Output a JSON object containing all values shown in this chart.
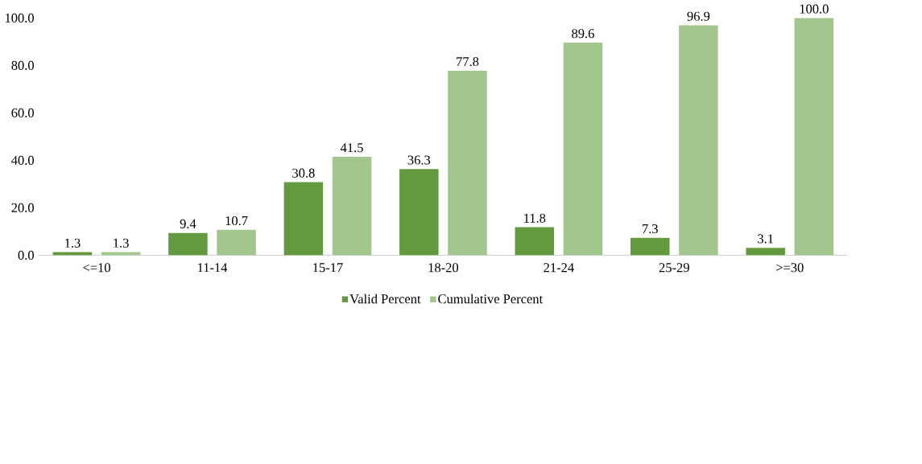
{
  "chart_data": {
    "type": "bar",
    "categories": [
      "<=10",
      "11-14",
      "15-17",
      "18-20",
      "21-24",
      "25-29",
      ">=30"
    ],
    "series": [
      {
        "name": "Valid Percent",
        "color": "#639a3f",
        "values": [
          1.3,
          9.4,
          30.8,
          36.3,
          11.8,
          7.3,
          3.1
        ],
        "value_labels": [
          "1.3",
          "9.4",
          "30.8",
          "36.3",
          "11.8",
          "7.3",
          "3.1"
        ]
      },
      {
        "name": "Cumulative Percent",
        "color": "#a3c68f",
        "values": [
          1.3,
          10.7,
          41.5,
          77.8,
          89.6,
          96.9,
          100.0
        ],
        "value_labels": [
          "1.3",
          "10.7",
          "41.5",
          "77.8",
          "89.6",
          "96.9",
          "100.0"
        ]
      }
    ],
    "ylim": [
      0,
      100
    ],
    "yticks": [
      {
        "value": 0,
        "label": "0.0"
      },
      {
        "value": 20,
        "label": "20.0"
      },
      {
        "value": 40,
        "label": "40.0"
      },
      {
        "value": 60,
        "label": "60.0"
      },
      {
        "value": 80,
        "label": "80.0"
      },
      {
        "value": 100,
        "label": "100.0"
      }
    ],
    "grid": false,
    "legend": "bottom"
  }
}
